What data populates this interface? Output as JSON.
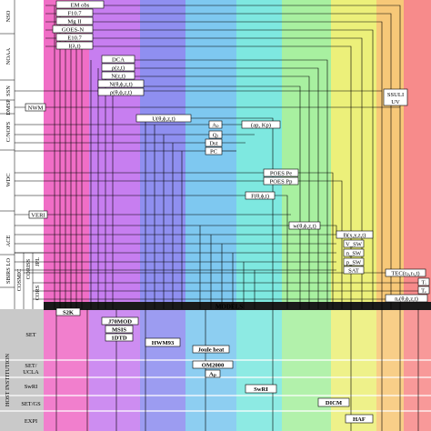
{
  "colors": {
    "bands": [
      "#f06ec6",
      "#c77ef0",
      "#8f8ff0",
      "#7ec8f0",
      "#7ee8e0",
      "#a8f0a0",
      "#ecf07a",
      "#f7c878",
      "#f78b8b"
    ],
    "host_bg": "#c9c9c9",
    "models_bar": "#1a1a1a",
    "models_text": "#ffffff"
  },
  "side_labels": {
    "top": [
      "NSO",
      "NOAA",
      "SSN",
      "DMSP",
      "C/NOFS",
      "WDC",
      "ACE",
      "SBIRS LO",
      "COSMIC",
      "CORISS",
      "JPL",
      "CORS"
    ],
    "host_title": "HOST INSTITUTION",
    "host_rows": [
      "SET",
      "SET/\nUCLA",
      "SwRI",
      "SET/GS",
      "EXPI"
    ]
  },
  "models_header": "MODELS",
  "inputs": {
    "em_obs": "EM obs",
    "f107": "F10.7",
    "mgii": "Mg II",
    "goes_n": "GOES-N",
    "e107": "E10.7",
    "i_lambda_t": "I(λ,t)",
    "dca": "DCA",
    "rho": "ρ(z,t)",
    "n_z": "N(z,t)",
    "n_full": "N(θ,ϕ,z,t)",
    "rho_full": "ρ(θ,ϕ,z,t)",
    "ssuli": "SSULI\nUV",
    "nwm": "NWM",
    "u_full": "U(θ,ϕ,z,t)",
    "ap": "Aₚ",
    "ap_kp": "(ap, Kp)",
    "qj": "Qⱼ",
    "dst": "Dst",
    "pc": "PC",
    "poes_pe": "POES Pe",
    "poes_pp": "POES Pp",
    "f_full": "F(θ,ϕ,t)",
    "veri": "VERI",
    "w_full": "w(θ,ϕ,z,t)",
    "b_full": "B(x,y,z,t)",
    "v_sw": "V_SW",
    "n_sw": "n_SW",
    "p_sw": "p_SW",
    "sat": "SAT",
    "tec": "TEC(rₚ,rₛ,t)",
    "ti": "Tᵢ",
    "te": "Tₑ",
    "ne": "nₑ(θ,ϕ,z,t)"
  },
  "models": {
    "s2k": "S2K",
    "j70mod": "J70MOD",
    "msis": "MSIS",
    "dtd": "1DTD",
    "hwm93": "HWM93",
    "joule_heat": "Joule heat",
    "om2000": "OM2000",
    "ap_model": "Aₚ",
    "swri": "SwRI",
    "dicm": "DICM",
    "haf": "HAF"
  }
}
